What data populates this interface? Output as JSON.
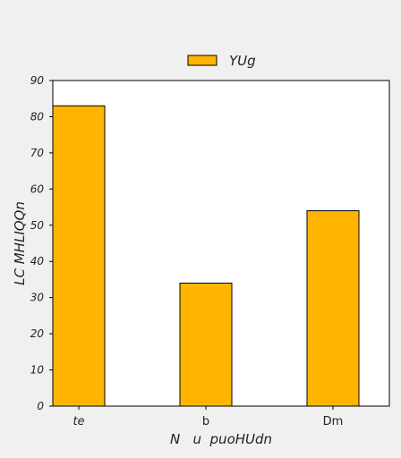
{
  "chart_data": {
    "type": "bar",
    "categories": [
      "te",
      "b",
      "Dm"
    ],
    "category_italic": [
      true,
      false,
      false
    ],
    "series": [
      {
        "name": "YUg",
        "values": [
          83,
          34,
          54
        ],
        "color": "#ffb400"
      }
    ],
    "xlabel": "N   u  puoHUdn",
    "ylabel": "LC MHLIQQn",
    "ylim": [
      0,
      90
    ],
    "yticks": [
      0,
      10,
      20,
      30,
      40,
      50,
      60,
      70,
      80,
      90
    ],
    "grid": false,
    "legend_position": "top-center",
    "colors": {
      "background": "#f0f0f0",
      "plot_background": "#ffffff",
      "bar_edge": "#000000",
      "axis": "#000000"
    }
  }
}
